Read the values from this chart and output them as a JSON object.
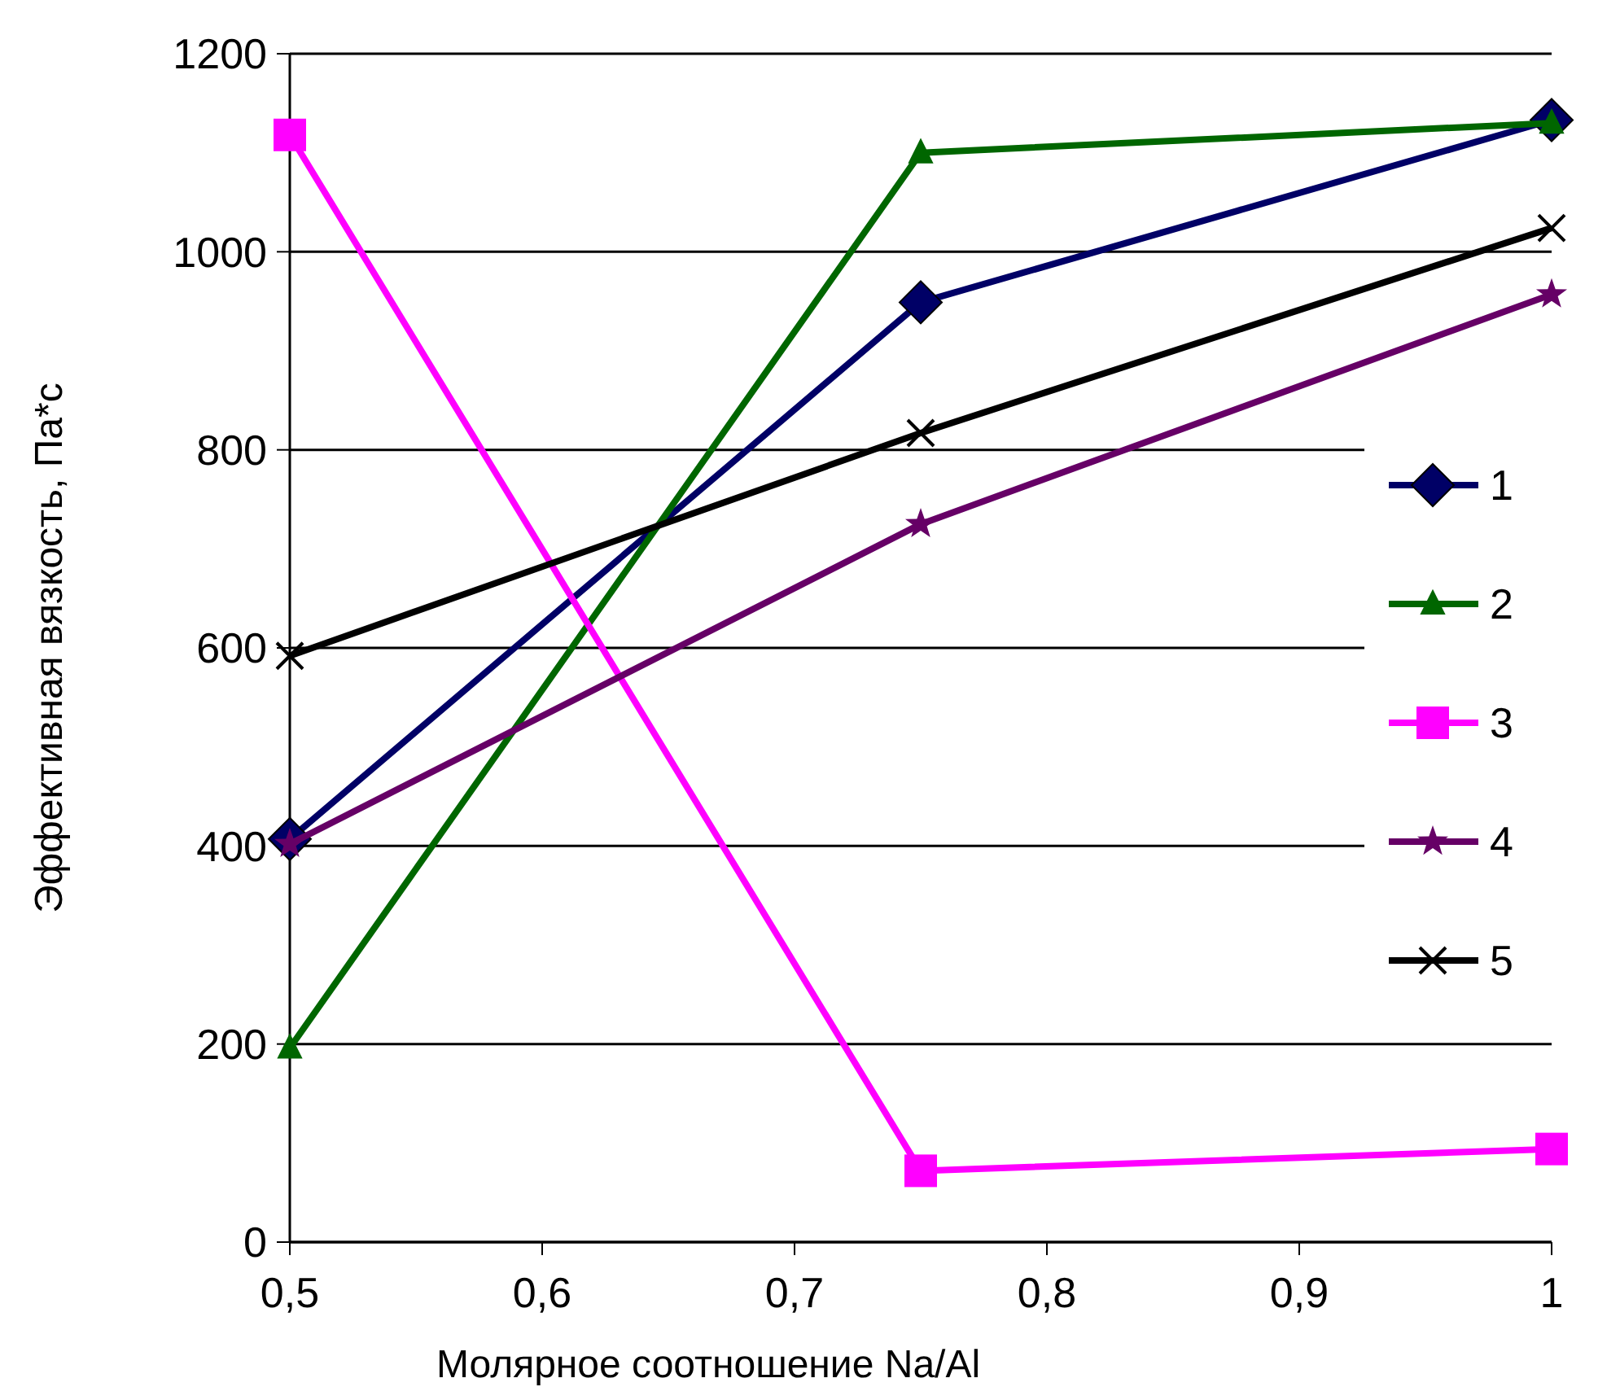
{
  "chart_data": {
    "type": "line",
    "xlabel": "Молярное соотношение Na/Al",
    "ylabel": "Эффективная вязкость, Па*с",
    "x": [
      0.5,
      0.75,
      1
    ],
    "xlim": [
      0.5,
      1
    ],
    "xticks": [
      {
        "value": 0.5,
        "label": "0,5"
      },
      {
        "value": 0.6,
        "label": "0,6"
      },
      {
        "value": 0.7,
        "label": "0,7"
      },
      {
        "value": 0.8,
        "label": "0,8"
      },
      {
        "value": 0.9,
        "label": "0,9"
      },
      1
    ],
    "ylim": [
      0,
      1200
    ],
    "yticks": [
      0,
      200,
      400,
      600,
      800,
      1000,
      1200
    ],
    "grid": "y",
    "legend": "right",
    "series": [
      {
        "name": "1",
        "color": "#000066",
        "marker": "diamond",
        "values": [
          407,
          949,
          1133
        ]
      },
      {
        "name": "2",
        "color": "#006600",
        "marker": "triangle",
        "values": [
          196,
          1100,
          1130
        ]
      },
      {
        "name": "3",
        "color": "#ff00ff",
        "marker": "square",
        "values": [
          1118,
          72,
          94
        ]
      },
      {
        "name": "4",
        "color": "#660066",
        "marker": "star",
        "values": [
          402,
          725,
          957
        ]
      },
      {
        "name": "5",
        "color": "#000000",
        "marker": "cross",
        "values": [
          592,
          817,
          1024
        ]
      }
    ]
  }
}
